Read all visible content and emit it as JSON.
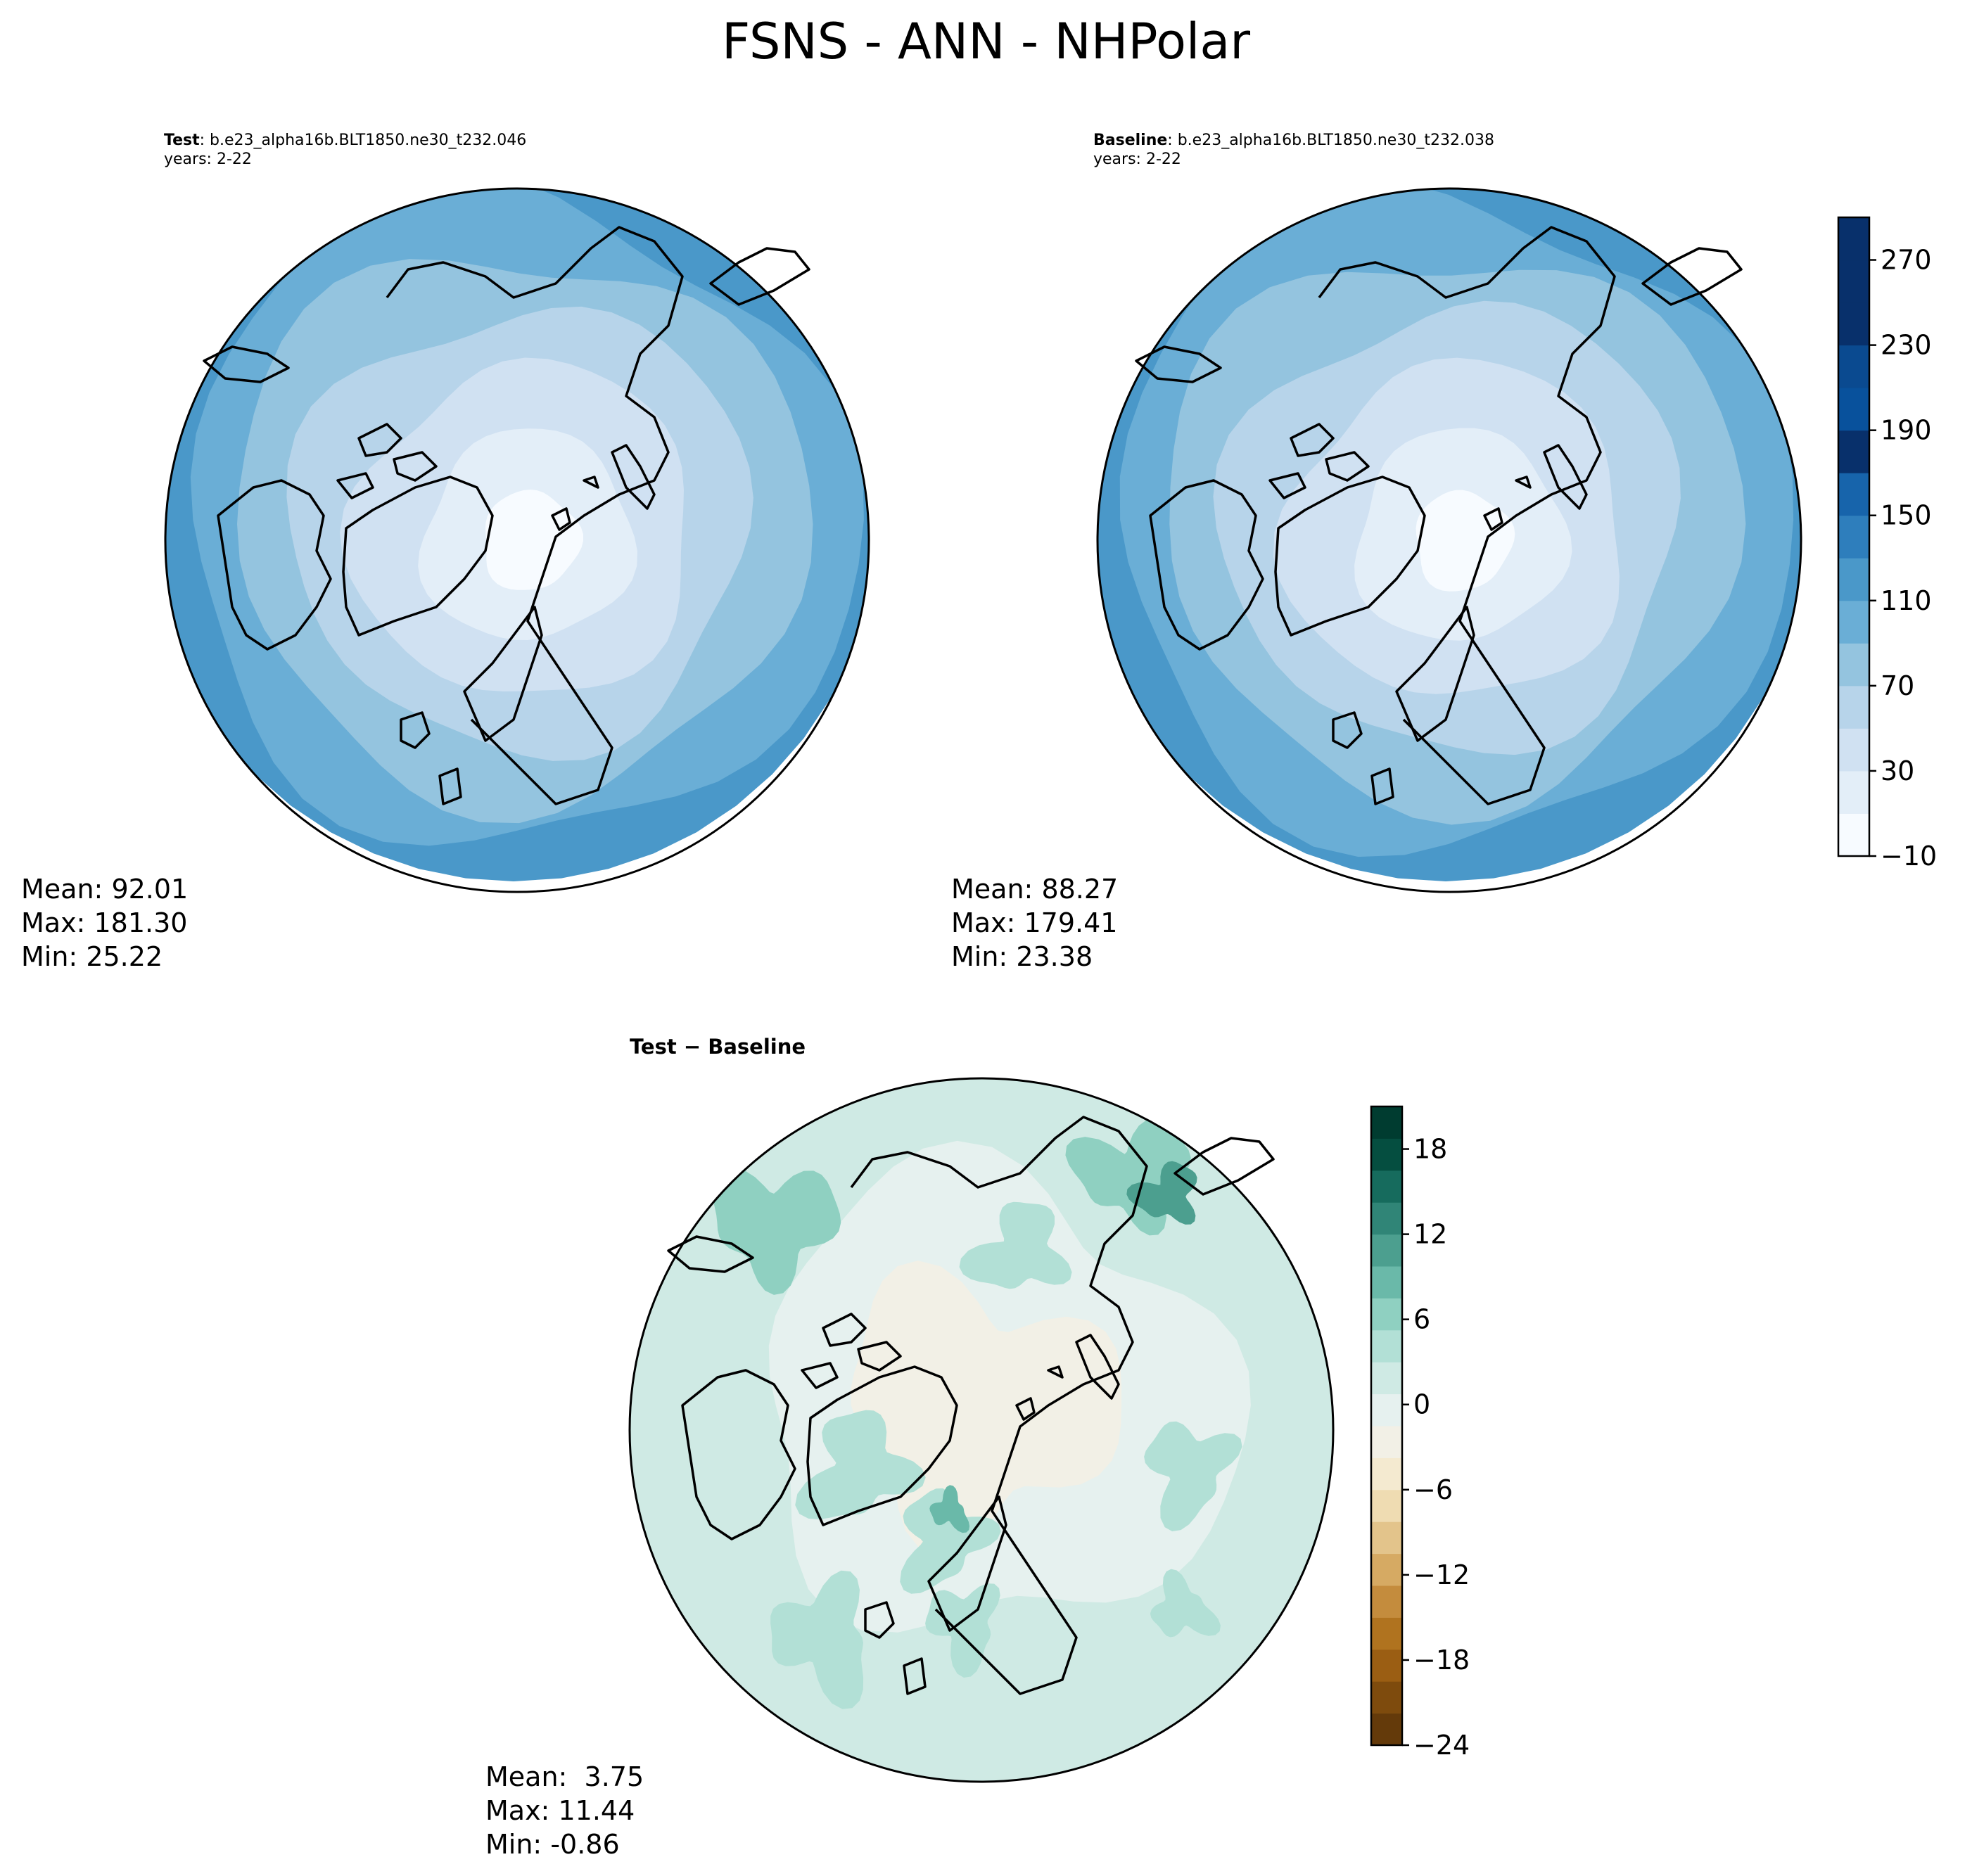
{
  "figure": {
    "title": "FSNS - ANN - NHPolar"
  },
  "colors": {
    "blues": [
      "#f7fbff",
      "#e3eef8",
      "#d0e1f2",
      "#b7d4ea",
      "#94c4df",
      "#6aaed6",
      "#4a98c9",
      "#2e7ebc",
      "#1764ab",
      "#08306b"
    ],
    "diverging": [
      "#643a0a",
      "#7e4b0d",
      "#9b5e13",
      "#b0731f",
      "#c48c3d",
      "#d6aa63",
      "#e3c48b",
      "#efdcb2",
      "#f4ead0",
      "#f2f0e6",
      "#e6f1ef",
      "#cfeae4",
      "#b2e0d6",
      "#8fd0c1",
      "#6ab9a9",
      "#4c9f8f",
      "#308577",
      "#166b5d",
      "#054e40",
      "#003c30"
    ]
  },
  "chart_data": [
    {
      "type": "heatmap",
      "title_bold": "Test",
      "title_text": ": b.e23_alpha16b.BLT1850.ne30_t232.046",
      "subtitle": "years: 2-22",
      "stats": {
        "mean_label": "Mean:",
        "mean": "92.01",
        "max_label": "Max:",
        "max": "181.30",
        "min_label": "Min:",
        "min": "25.22"
      }
    },
    {
      "type": "heatmap",
      "title_bold": "Baseline",
      "title_text": ": b.e23_alpha16b.BLT1850.ne30_t232.038",
      "subtitle": "years: 2-22",
      "stats": {
        "mean_label": "Mean:",
        "mean": "88.27",
        "max_label": "Max:",
        "max": "179.41",
        "min_label": "Min:",
        "min": "23.38"
      },
      "colorbar": {
        "range": [
          -10,
          290
        ],
        "ticks": [
          -10,
          30,
          70,
          110,
          150,
          190,
          230,
          270
        ],
        "tick_labels": [
          "−10",
          "30",
          "70",
          "110",
          "150",
          "190",
          "230",
          "270"
        ]
      }
    },
    {
      "type": "heatmap",
      "title": "Test − Baseline",
      "stats": {
        "mean_label": "Mean:",
        "mean": " 3.75",
        "max_label": "Max:",
        "max": "11.44",
        "min_label": "Min:",
        "min": "-0.86"
      },
      "colorbar": {
        "range": [
          -24,
          21
        ],
        "ticks": [
          -24,
          -18,
          -12,
          -6,
          0,
          6,
          12,
          18
        ],
        "tick_labels": [
          "−24",
          "−18",
          "−12",
          "−6",
          "0",
          "6",
          "12",
          "18"
        ]
      }
    }
  ]
}
